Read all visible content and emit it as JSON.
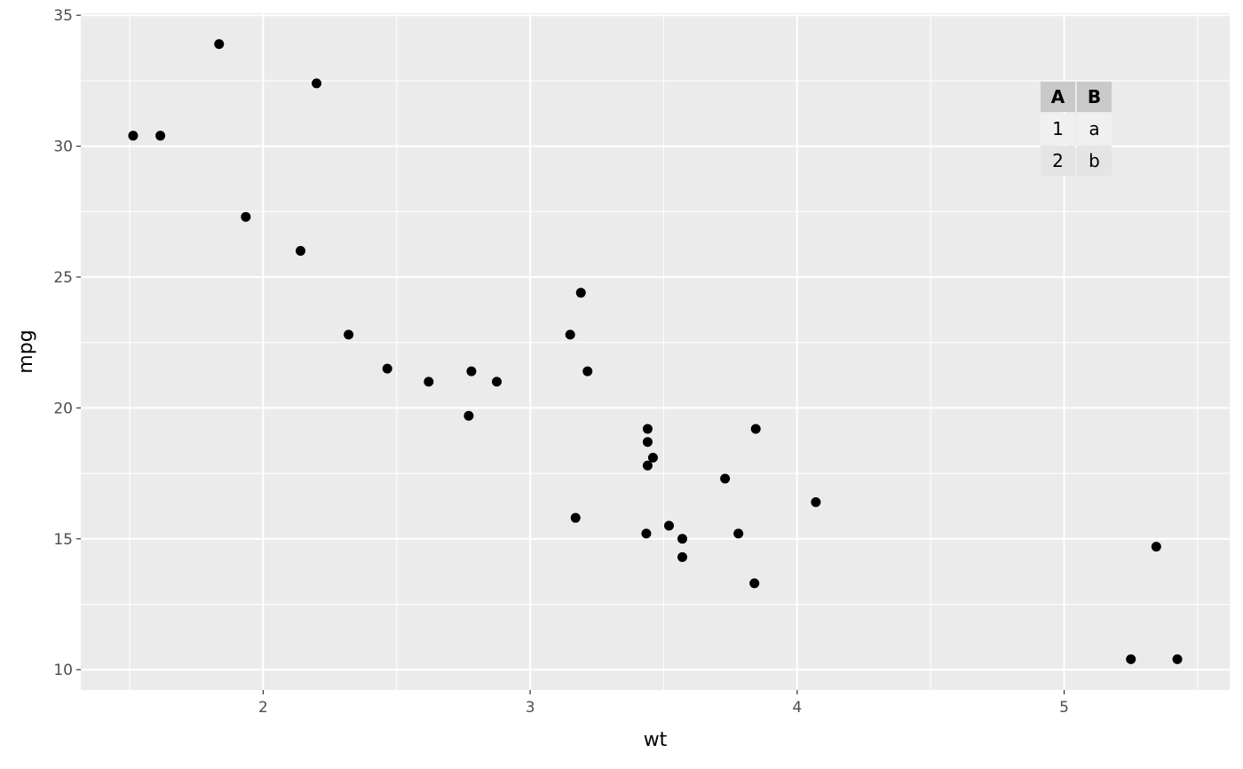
{
  "chart_data": {
    "type": "scatter",
    "xlabel": "wt",
    "ylabel": "mpg",
    "xlim": [
      1.317,
      5.62
    ],
    "ylim": [
      9.225,
      35.075
    ],
    "xticks": [
      2,
      3,
      4,
      5
    ],
    "yticks": [
      10,
      15,
      20,
      25,
      30,
      35
    ],
    "grid": true,
    "points": [
      [
        2.62,
        21.0
      ],
      [
        2.875,
        21.0
      ],
      [
        2.32,
        22.8
      ],
      [
        3.215,
        21.4
      ],
      [
        3.44,
        18.7
      ],
      [
        3.46,
        18.1
      ],
      [
        3.57,
        14.3
      ],
      [
        3.19,
        24.4
      ],
      [
        3.15,
        22.8
      ],
      [
        3.44,
        19.2
      ],
      [
        3.44,
        17.8
      ],
      [
        4.07,
        16.4
      ],
      [
        3.73,
        17.3
      ],
      [
        3.78,
        15.2
      ],
      [
        5.25,
        10.4
      ],
      [
        5.424,
        10.4
      ],
      [
        5.345,
        14.7
      ],
      [
        2.2,
        32.4
      ],
      [
        1.615,
        30.4
      ],
      [
        1.835,
        33.9
      ],
      [
        2.465,
        21.5
      ],
      [
        3.52,
        15.5
      ],
      [
        3.435,
        15.2
      ],
      [
        3.84,
        13.3
      ],
      [
        3.845,
        19.2
      ],
      [
        1.935,
        27.3
      ],
      [
        2.14,
        26.0
      ],
      [
        1.513,
        30.4
      ],
      [
        3.17,
        15.8
      ],
      [
        2.77,
        19.7
      ],
      [
        3.57,
        15.0
      ],
      [
        2.78,
        21.4
      ]
    ],
    "point_color": "#000000",
    "panel_color": "#ebebeb",
    "inset_table": {
      "headers": [
        "A",
        "B"
      ],
      "rows": [
        [
          "1",
          "a"
        ],
        [
          "2",
          "b"
        ]
      ]
    }
  }
}
